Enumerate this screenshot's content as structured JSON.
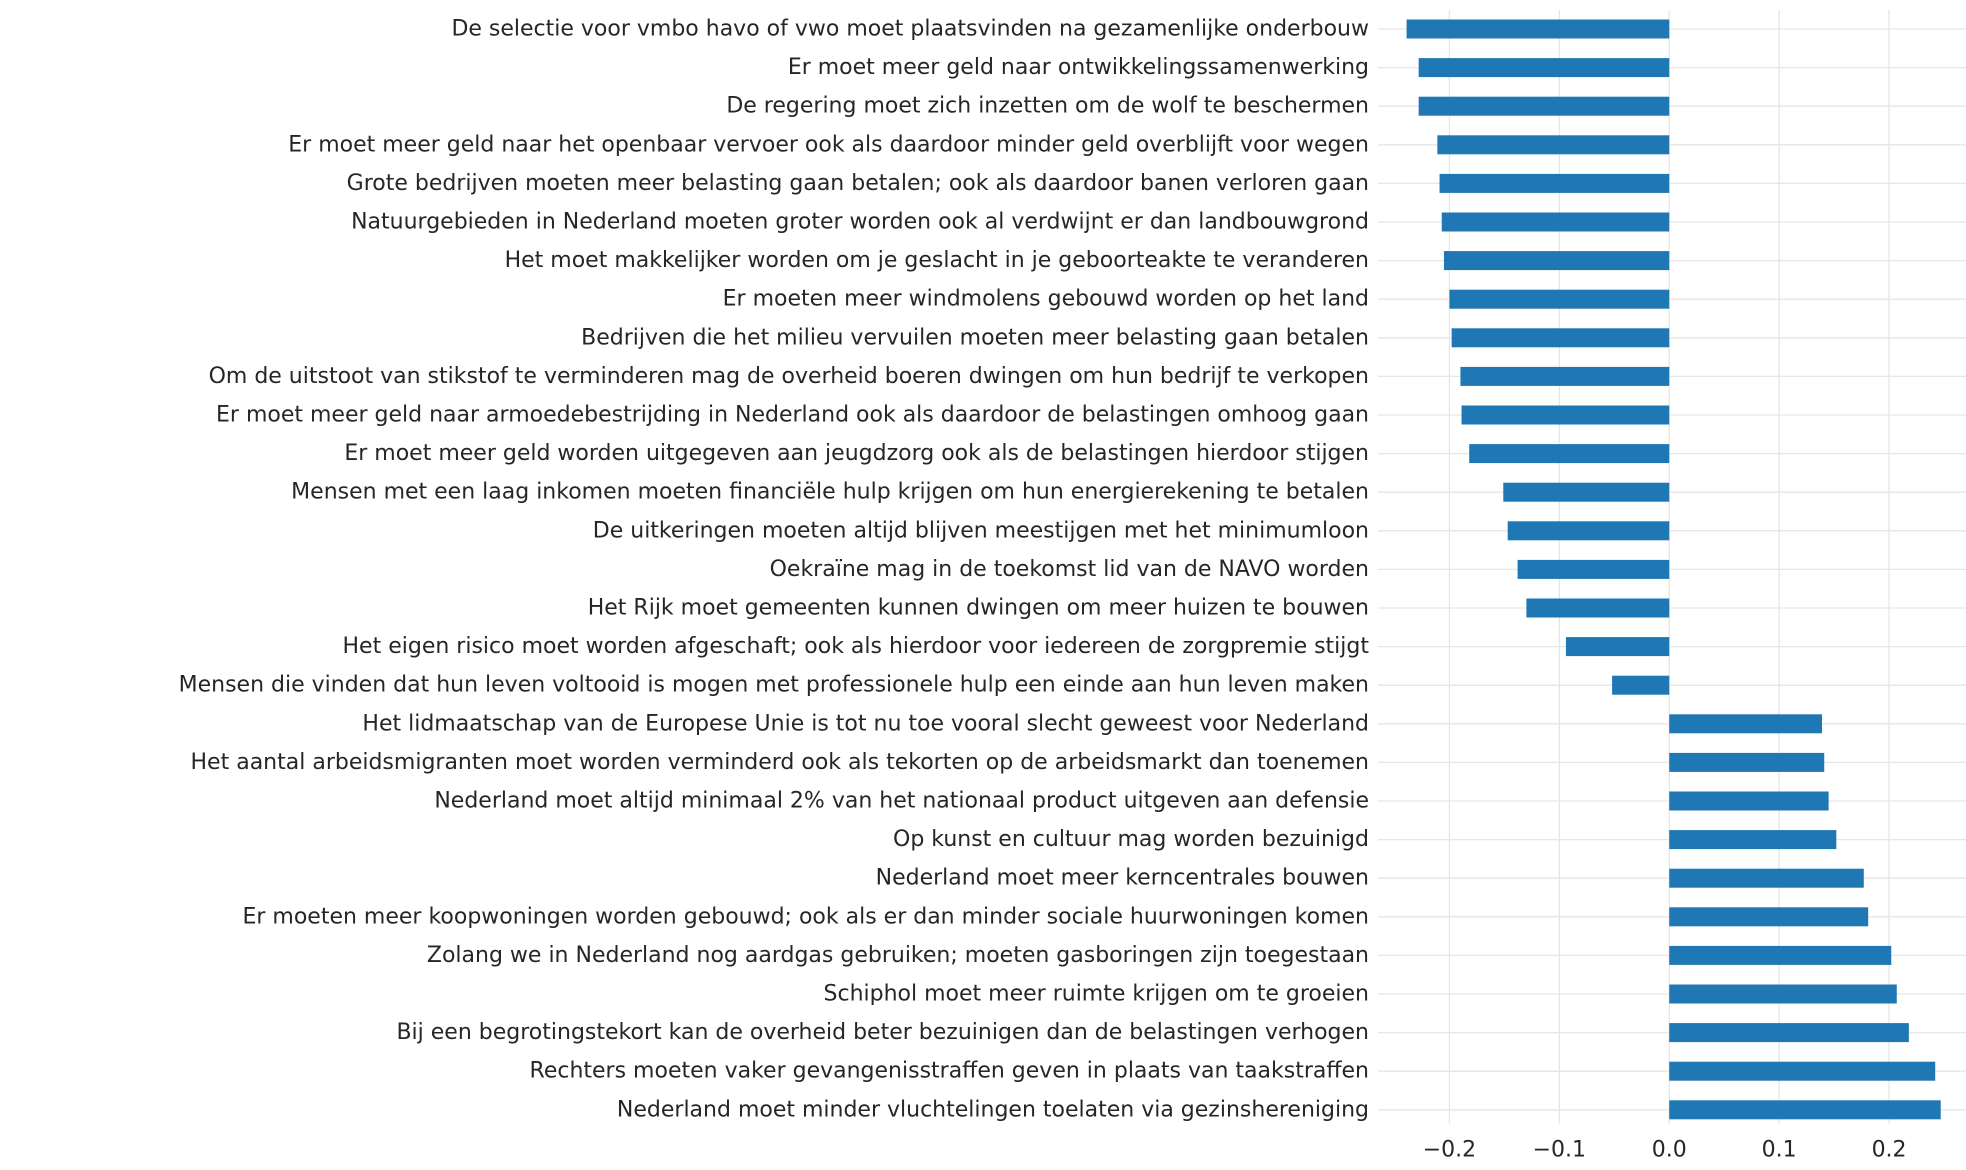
{
  "chart_data": {
    "type": "bar",
    "orientation": "horizontal",
    "title": "",
    "xlabel": "",
    "ylabel": "",
    "xlim": [
      -0.265,
      0.27
    ],
    "x_ticks": [
      -0.2,
      -0.1,
      0.0,
      0.1,
      0.2
    ],
    "x_tick_labels": [
      "−0.2",
      "−0.1",
      "0.0",
      "0.1",
      "0.2"
    ],
    "grid": true,
    "bar_color": "#1f77b4",
    "background_color": "#ffffff",
    "grid_color": "#e6e6e6",
    "categories": [
      "De selectie voor vmbo havo of vwo moet plaatsvinden na gezamenlijke onderbouw",
      "Er moet meer geld naar ontwikkelingssamenwerking",
      "De regering moet zich inzetten om de wolf te beschermen",
      "Er moet meer geld naar het openbaar vervoer ook als daardoor minder geld overblijft voor wegen",
      "Grote bedrijven moeten meer belasting gaan betalen; ook als daardoor banen verloren gaan",
      "Natuurgebieden in Nederland moeten groter worden ook al verdwijnt er dan landbouwgrond",
      "Het moet makkelijker worden om je geslacht in je geboorteakte te veranderen",
      "Er moeten meer windmolens gebouwd worden op het land",
      "Bedrijven die het milieu vervuilen moeten meer belasting gaan betalen",
      "Om de uitstoot van stikstof te verminderen mag de overheid boeren dwingen om hun bedrijf te verkopen",
      "Er moet meer geld naar armoedebestrijding in Nederland ook als daardoor de belastingen omhoog gaan",
      "Er moet meer geld worden uitgegeven aan jeugdzorg ook als de belastingen hierdoor stijgen",
      "Mensen met een laag inkomen moeten financiële hulp krijgen om hun energierekening te betalen",
      "De uitkeringen moeten altijd blijven meestijgen met het minimumloon",
      "Oekraïne mag in de toekomst lid van de NAVO worden",
      "Het Rijk moet gemeenten kunnen dwingen om meer huizen te bouwen",
      "Het eigen risico moet worden afgeschaft; ook als hierdoor voor iedereen de zorgpremie stijgt",
      "Mensen die vinden dat hun leven voltooid is mogen met professionele hulp een einde aan hun leven maken",
      "Het lidmaatschap van de Europese Unie is tot nu toe vooral slecht geweest voor Nederland",
      "Het aantal arbeidsmigranten moet worden verminderd ook als tekorten op de arbeidsmarkt dan toenemen",
      "Nederland moet altijd minimaal 2% van het nationaal product uitgeven aan defensie",
      "Op kunst en cultuur mag worden bezuinigd",
      "Nederland moet meer kerncentrales bouwen",
      "Er moeten meer koopwoningen worden gebouwd; ook als er dan minder sociale huurwoningen komen",
      "Zolang we in Nederland nog aardgas gebruiken; moeten gasboringen zijn toegestaan",
      "Schiphol moet meer ruimte krijgen om te groeien",
      "Bij een begrotingstekort kan de overheid beter bezuinigen dan de belastingen verhogen",
      "Rechters moeten vaker gevangenisstraffen geven in plaats van taakstraffen",
      "Nederland moet minder vluchtelingen toelaten via gezinshereniging"
    ],
    "values": [
      -0.239,
      -0.228,
      -0.228,
      -0.211,
      -0.209,
      -0.207,
      -0.205,
      -0.2,
      -0.198,
      -0.19,
      -0.189,
      -0.182,
      -0.151,
      -0.147,
      -0.138,
      -0.13,
      -0.094,
      -0.052,
      0.139,
      0.141,
      0.145,
      0.152,
      0.177,
      0.181,
      0.202,
      0.207,
      0.218,
      0.242,
      0.247
    ]
  }
}
